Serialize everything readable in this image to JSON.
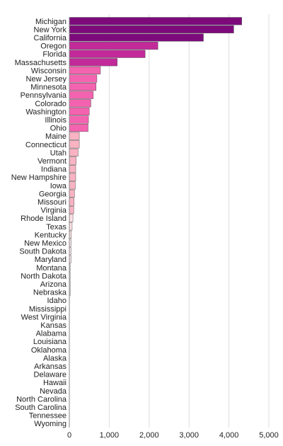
{
  "chart_data": {
    "type": "bar",
    "orientation": "horizontal",
    "categories": [
      "Michigan",
      "New York",
      "California",
      "Oregon",
      "Florida",
      "Massachusetts",
      "Wisconsin",
      "New Jersey",
      "Minnesota",
      "Pennsylvania",
      "Colorado",
      "Washington",
      "Illinois",
      "Ohio",
      "Maine",
      "Connecticut",
      "Utah",
      "Vermont",
      "Indiana",
      "New Hampshire",
      "Iowa",
      "Georgia",
      "Missouri",
      "Virginia",
      "Rhode Island",
      "Texas",
      "Kentucky",
      "New Mexico",
      "South Dakota",
      "Maryland",
      "Montana",
      "North Dakota",
      "Arizona",
      "Nebraska",
      "Idaho",
      "Mississippi",
      "West Virginia",
      "Kansas",
      "Alabama",
      "Louisiana",
      "Oklahoma",
      "Alaska",
      "Arkansas",
      "Delaware",
      "Hawaii",
      "Nevada",
      "North Carolina",
      "South Carolina",
      "Tennessee",
      "Wyoming"
    ],
    "values": [
      4320,
      4120,
      3360,
      2220,
      1900,
      1200,
      780,
      690,
      670,
      600,
      540,
      500,
      480,
      470,
      250,
      250,
      220,
      170,
      160,
      160,
      150,
      130,
      120,
      110,
      90,
      70,
      50,
      40,
      40,
      40,
      20,
      20,
      20,
      20,
      5,
      0,
      0,
      0,
      0,
      0,
      0,
      0,
      0,
      0,
      0,
      0,
      0,
      0,
      0,
      0
    ],
    "xlim": [
      0,
      5000
    ],
    "xticks": [
      0,
      1000,
      2000,
      3000,
      4000,
      5000
    ],
    "xtick_labels": [
      "0",
      "1,000",
      "2,000",
      "3,000",
      "4,000",
      "5,000"
    ],
    "grid": "vertical",
    "title": "",
    "xlabel": "",
    "ylabel": "",
    "colors": {
      "tier1": "#7d0a7b",
      "tier2": "#c22a9a",
      "tier3": "#f463b0",
      "tier4": "#f9b3c3",
      "tier5": "#fde0e6"
    }
  }
}
